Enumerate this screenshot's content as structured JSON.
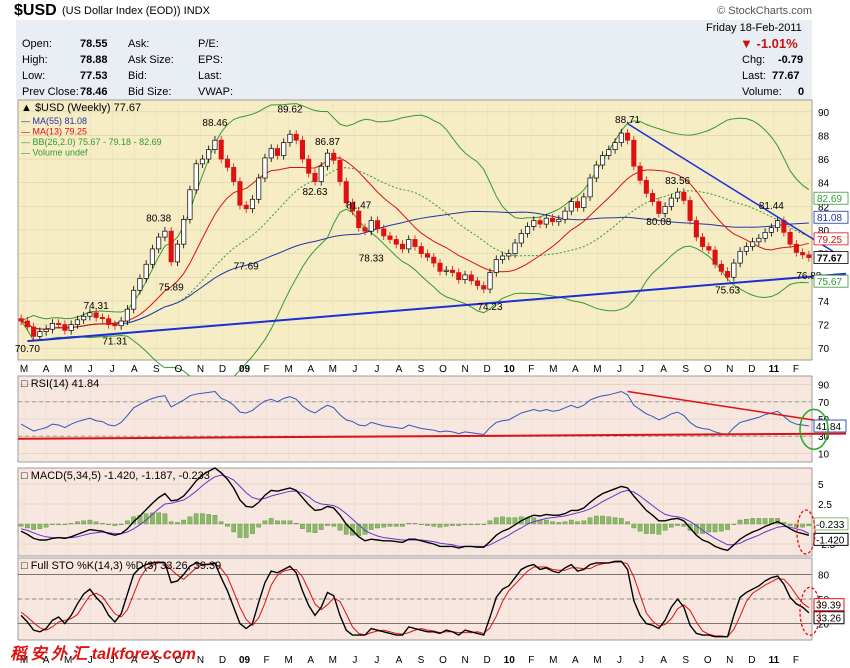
{
  "header": {
    "symbol": "$USD",
    "name": "(US Dollar Index (EOD))",
    "exchange": "INDX",
    "watermark": "© StockCharts.com",
    "date": "Friday 18-Feb-2011",
    "change_pct": "-1.01%"
  },
  "quote": {
    "open_label": "Open:",
    "open": "78.55",
    "high_label": "High:",
    "high": "78.88",
    "low_label": "Low:",
    "low": "77.53",
    "prev_label": "Prev Close:",
    "prev": "78.46",
    "ask_label": "Ask:",
    "ask_size_label": "Ask Size:",
    "bid_label": "Bid:",
    "bid_size_label": "Bid Size:",
    "pe_label": "P/E:",
    "eps_label": "EPS:",
    "last_label": "Last:",
    "vwap_label": "VWAP:",
    "chg_label": "Chg:",
    "chg": "-0.79",
    "last2_label": "Last:",
    "last": "77.67",
    "volume_label": "Volume:",
    "volume": "0"
  },
  "colors": {
    "panel_bg": "#f6edc4",
    "ind_bg": "#f7e7e0",
    "up": "#000000",
    "down": "#dd1111",
    "ma55": "#2233aa",
    "ma13": "#dd1111",
    "bb": "#339933",
    "trend_blue": "#1c2fd6",
    "trend_red": "#dd1111"
  },
  "chart_data": [
    {
      "type": "line",
      "title": "$USD (Weekly) 77.67",
      "legend": [
        "MA(55) 81.08",
        "MA(13) 79.25",
        "BB(26,2.0) 75.67 - 79.18 - 82.69",
        "Volume undef"
      ],
      "ylim": [
        69,
        91
      ],
      "yticks": [
        70,
        72,
        74,
        76,
        78,
        80,
        82,
        84,
        86,
        88,
        90
      ],
      "x_labels": [
        "M",
        "A",
        "M",
        "J",
        "J",
        "A",
        "S",
        "O",
        "N",
        "D",
        "09",
        "F",
        "M",
        "A",
        "M",
        "J",
        "J",
        "A",
        "S",
        "O",
        "N",
        "D",
        "10",
        "F",
        "M",
        "A",
        "M",
        "J",
        "J",
        "A",
        "S",
        "O",
        "N",
        "D",
        "11",
        "F"
      ],
      "annotations": [
        {
          "week": 1,
          "value": 70.7,
          "label": "70.70"
        },
        {
          "week": 15,
          "value": 71.31,
          "label": "71.31"
        },
        {
          "week": 12,
          "value": 74.31,
          "label": "74.31"
        },
        {
          "week": 22,
          "value": 80.38,
          "label": "80.38"
        },
        {
          "week": 24,
          "value": 75.89,
          "label": "75.89"
        },
        {
          "week": 31,
          "value": 88.46,
          "label": "88.46"
        },
        {
          "week": 36,
          "value": 77.69,
          "label": "77.69"
        },
        {
          "week": 43,
          "value": 89.62,
          "label": "89.62"
        },
        {
          "week": 47,
          "value": 82.63,
          "label": "82.63"
        },
        {
          "week": 49,
          "value": 86.87,
          "label": "86.87"
        },
        {
          "week": 54,
          "value": 81.47,
          "label": "81.47"
        },
        {
          "week": 56,
          "value": 78.33,
          "label": "78.33"
        },
        {
          "week": 75,
          "value": 74.23,
          "label": "74.23"
        },
        {
          "week": 97,
          "value": 88.71,
          "label": "88.71"
        },
        {
          "week": 102,
          "value": 80.08,
          "label": "80.08"
        },
        {
          "week": 105,
          "value": 83.56,
          "label": "83.56"
        },
        {
          "week": 113,
          "value": 75.63,
          "label": "75.63"
        },
        {
          "week": 120,
          "value": 81.44,
          "label": "81.44"
        },
        {
          "week": 126,
          "value": 76.88,
          "label": "76.88"
        }
      ],
      "right_labels": [
        {
          "value": 82.69,
          "label": "82.69",
          "color": "#339933"
        },
        {
          "value": 81.08,
          "label": "81.08",
          "color": "#2233aa"
        },
        {
          "value": 79.25,
          "label": "79.25",
          "color": "#dd1111"
        },
        {
          "value": 77.67,
          "label": "77.67",
          "color": "#000000"
        },
        {
          "value": 75.67,
          "label": "75.67",
          "color": "#339933"
        }
      ],
      "close": [
        72.3,
        71.8,
        71.0,
        71.4,
        71.6,
        72.1,
        72.0,
        71.5,
        72.0,
        72.4,
        72.7,
        73.0,
        72.6,
        72.5,
        72.0,
        71.9,
        72.3,
        73.3,
        74.9,
        75.9,
        77.1,
        78.4,
        79.4,
        79.9,
        77.3,
        78.8,
        80.9,
        83.4,
        85.6,
        86.0,
        86.8,
        87.6,
        86.0,
        85.3,
        84.1,
        82.1,
        81.8,
        82.6,
        84.4,
        86.1,
        86.9,
        86.3,
        87.4,
        88.1,
        87.6,
        86.0,
        84.8,
        84.1,
        85.4,
        86.5,
        85.9,
        84.1,
        82.3,
        81.6,
        80.2,
        79.9,
        80.8,
        80.1,
        79.5,
        79.2,
        78.8,
        78.4,
        79.2,
        78.6,
        78.0,
        77.7,
        77.2,
        76.5,
        76.6,
        76.4,
        75.8,
        76.2,
        75.7,
        75.3,
        75.0,
        76.4,
        77.5,
        77.8,
        78.0,
        78.9,
        79.7,
        80.3,
        80.8,
        80.5,
        81.0,
        80.7,
        80.9,
        81.6,
        82.4,
        81.9,
        82.8,
        84.4,
        85.5,
        86.3,
        86.8,
        87.4,
        88.2,
        87.6,
        85.4,
        84.2,
        83.1,
        82.4,
        81.4,
        82.0,
        82.7,
        83.2,
        82.5,
        80.8,
        79.4,
        78.6,
        78.3,
        77.1,
        76.5,
        76.0,
        77.2,
        78.2,
        78.6,
        79.0,
        79.3,
        79.8,
        80.2,
        80.8,
        79.8,
        78.8,
        78.1,
        77.9,
        77.67
      ]
    },
    {
      "type": "line",
      "title": "RSI(14) 41.84",
      "ylim": [
        0,
        100
      ],
      "yticks": [
        10,
        30,
        50,
        70,
        90
      ],
      "current": "41.84",
      "series": [
        {
          "values": [
            44,
            40,
            36,
            38,
            40,
            44,
            43,
            40,
            44,
            47,
            49,
            51,
            48,
            47,
            43,
            42,
            46,
            54,
            63,
            67,
            71,
            74,
            76,
            77,
            64,
            68,
            72,
            77,
            79,
            80,
            81,
            82,
            74,
            71,
            66,
            58,
            57,
            60,
            66,
            71,
            73,
            70,
            74,
            76,
            73,
            65,
            60,
            57,
            62,
            66,
            63,
            55,
            49,
            47,
            43,
            42,
            46,
            44,
            42,
            41,
            40,
            39,
            43,
            41,
            39,
            38,
            37,
            35,
            36,
            35,
            33,
            35,
            34,
            33,
            32,
            40,
            46,
            48,
            49,
            53,
            57,
            59,
            61,
            59,
            61,
            59,
            60,
            63,
            66,
            63,
            66,
            72,
            75,
            77,
            78,
            80,
            82,
            78,
            66,
            61,
            56,
            53,
            49,
            52,
            56,
            58,
            54,
            46,
            41,
            39,
            38,
            35,
            33,
            32,
            40,
            46,
            48,
            50,
            52,
            55,
            57,
            59,
            53,
            47,
            44,
            43,
            41.84
          ]
        }
      ]
    },
    {
      "type": "line",
      "title": "MACD(5,34,5) -1.420, -1.187, -0.233",
      "ylim": [
        -4,
        7
      ],
      "yticks": [
        -2.5,
        0,
        2.5,
        5.0
      ],
      "current_labels": [
        "-0.233",
        "-1.420"
      ],
      "series": [
        {
          "name": "MACD",
          "values": [
            -0.9,
            -1.3,
            -1.8,
            -2.0,
            -2.0,
            -1.8,
            -1.7,
            -1.8,
            -1.6,
            -1.3,
            -1.0,
            -0.7,
            -0.8,
            -0.9,
            -1.2,
            -1.4,
            -1.2,
            -0.6,
            0.3,
            1.0,
            1.8,
            2.6,
            3.3,
            3.8,
            2.9,
            3.0,
            3.5,
            4.4,
            5.4,
            6.1,
            6.6,
            7.0,
            6.4,
            5.6,
            4.5,
            3.0,
            2.2,
            2.1,
            2.7,
            3.6,
            4.2,
            4.1,
            4.3,
            4.5,
            4.2,
            3.3,
            2.4,
            1.7,
            1.8,
            2.2,
            2.0,
            1.1,
            0.0,
            -0.8,
            -1.6,
            -2.1,
            -1.9,
            -2.0,
            -2.1,
            -2.1,
            -2.2,
            -2.3,
            -1.9,
            -1.9,
            -2.1,
            -2.3,
            -2.5,
            -2.8,
            -2.8,
            -2.8,
            -3.0,
            -2.8,
            -2.8,
            -2.9,
            -2.9,
            -2.2,
            -1.4,
            -0.9,
            -0.6,
            -0.1,
            0.4,
            0.8,
            1.1,
            1.0,
            1.2,
            1.1,
            1.1,
            1.3,
            1.7,
            1.7,
            2.0,
            2.7,
            3.3,
            3.8,
            4.1,
            4.4,
            4.7,
            4.5,
            3.5,
            2.6,
            1.7,
            1.1,
            0.4,
            0.4,
            0.6,
            0.7,
            0.4,
            -0.5,
            -1.4,
            -2.0,
            -2.3,
            -2.8,
            -3.1,
            -3.3,
            -2.6,
            -1.9,
            -1.4,
            -1.0,
            -0.7,
            -0.3,
            0.0,
            0.3,
            -0.1,
            -0.6,
            -1.0,
            -1.2,
            -1.42
          ]
        },
        {
          "name": "Signal",
          "values": [
            -0.6,
            -0.8,
            -1.1,
            -1.4,
            -1.6,
            -1.7,
            -1.7,
            -1.7,
            -1.7,
            -1.6,
            -1.4,
            -1.2,
            -1.1,
            -1.0,
            -1.1,
            -1.2,
            -1.2,
            -1.0,
            -0.6,
            -0.1,
            0.5,
            1.2,
            1.9,
            2.5,
            2.6,
            2.8,
            3.0,
            3.5,
            4.1,
            4.8,
            5.4,
            5.9,
            6.1,
            5.9,
            5.5,
            4.7,
            3.9,
            3.3,
            3.1,
            3.2,
            3.5,
            3.7,
            3.9,
            4.1,
            4.1,
            3.9,
            3.4,
            2.8,
            2.5,
            2.4,
            2.3,
            1.9,
            1.3,
            0.6,
            -0.1,
            -0.8,
            -1.2,
            -1.5,
            -1.7,
            -1.8,
            -1.9,
            -2.0,
            -2.0,
            -2.0,
            -2.0,
            -2.1,
            -2.2,
            -2.4,
            -2.5,
            -2.6,
            -2.8,
            -2.8,
            -2.8,
            -2.8,
            -2.8,
            -2.6,
            -2.2,
            -1.8,
            -1.4,
            -0.9,
            -0.5,
            0.0,
            0.3,
            0.5,
            0.7,
            0.8,
            0.9,
            1.0,
            1.2,
            1.4,
            1.6,
            1.9,
            2.3,
            2.8,
            3.2,
            3.6,
            4.0,
            4.2,
            4.0,
            3.5,
            2.9,
            2.3,
            1.7,
            1.2,
            1.0,
            0.9,
            0.7,
            0.3,
            -0.2,
            -0.8,
            -1.3,
            -1.8,
            -2.2,
            -2.6,
            -2.6,
            -2.4,
            -2.0,
            -1.7,
            -1.4,
            -1.0,
            -0.7,
            -0.4,
            -0.3,
            -0.4,
            -0.6,
            -0.8,
            -1.187
          ]
        }
      ]
    },
    {
      "type": "line",
      "title": "Full STO %K(14,3) %D(3) 33.26, 39.39",
      "ylim": [
        0,
        100
      ],
      "yticks": [
        20,
        50,
        80
      ],
      "current_labels": [
        "39.39",
        "33.26"
      ],
      "series": [
        {
          "name": "%K",
          "values": [
            30,
            22,
            12,
            10,
            14,
            24,
            28,
            20,
            30,
            44,
            56,
            62,
            52,
            44,
            30,
            22,
            32,
            56,
            80,
            88,
            92,
            94,
            95,
            94,
            70,
            72,
            80,
            90,
            94,
            92,
            92,
            94,
            76,
            60,
            40,
            20,
            14,
            20,
            46,
            70,
            84,
            82,
            86,
            90,
            82,
            60,
            42,
            30,
            40,
            58,
            54,
            30,
            12,
            6,
            6,
            6,
            14,
            12,
            10,
            8,
            6,
            6,
            16,
            14,
            12,
            10,
            10,
            8,
            12,
            10,
            6,
            12,
            10,
            8,
            6,
            28,
            52,
            62,
            66,
            76,
            86,
            90,
            92,
            86,
            88,
            84,
            82,
            88,
            92,
            84,
            86,
            92,
            94,
            94,
            94,
            96,
            96,
            86,
            48,
            30,
            20,
            18,
            14,
            24,
            40,
            50,
            40,
            18,
            8,
            6,
            6,
            4,
            4,
            4,
            30,
            52,
            58,
            62,
            66,
            72,
            76,
            78,
            68,
            52,
            44,
            40,
            33.26
          ]
        },
        {
          "name": "%D",
          "values": [
            34,
            28,
            21,
            15,
            12,
            16,
            22,
            24,
            26,
            31,
            43,
            54,
            57,
            53,
            42,
            32,
            28,
            37,
            56,
            75,
            87,
            91,
            94,
            94,
            86,
            79,
            74,
            81,
            88,
            92,
            93,
            93,
            87,
            77,
            59,
            40,
            25,
            18,
            27,
            45,
            67,
            79,
            84,
            86,
            86,
            77,
            61,
            44,
            37,
            43,
            51,
            47,
            32,
            16,
            8,
            6,
            9,
            11,
            12,
            10,
            8,
            7,
            9,
            12,
            14,
            12,
            11,
            9,
            10,
            10,
            9,
            9,
            9,
            10,
            8,
            15,
            29,
            47,
            60,
            68,
            76,
            84,
            89,
            89,
            89,
            86,
            85,
            85,
            88,
            88,
            87,
            87,
            91,
            93,
            94,
            95,
            95,
            93,
            77,
            55,
            33,
            23,
            17,
            19,
            26,
            38,
            43,
            36,
            22,
            11,
            7,
            5,
            5,
            4,
            13,
            29,
            47,
            57,
            62,
            67,
            71,
            75,
            74,
            66,
            55,
            45,
            39.39
          ]
        }
      ]
    }
  ]
}
